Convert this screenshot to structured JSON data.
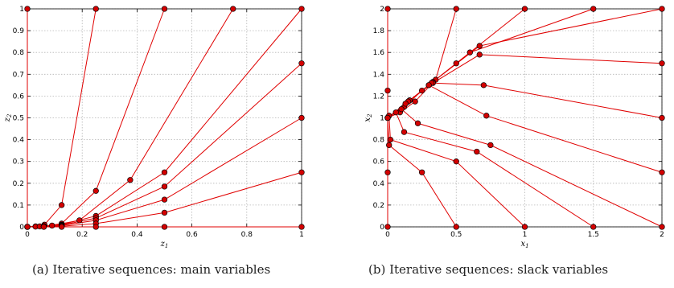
{
  "colors": {
    "line": "#e00000",
    "point_fill": "#d40000",
    "point_stroke": "#000000",
    "grid": "#b4b4b4"
  },
  "chart_data": [
    {
      "type": "line",
      "caption": "(a) Iterative sequences: main variables",
      "xlabel": "z",
      "xlabel_sub": "1",
      "ylabel": "z",
      "ylabel_sub": "2",
      "xlim": [
        0,
        1
      ],
      "ylim": [
        0,
        1
      ],
      "xticks": [
        0,
        0.2,
        0.4,
        0.6,
        0.8,
        1
      ],
      "xtick_labels": [
        "0",
        "0.2",
        "0.4",
        "0.6",
        "0.8",
        "1"
      ],
      "yticks": [
        0,
        0.1,
        0.2,
        0.3,
        0.4,
        0.5,
        0.6,
        0.7,
        0.8,
        0.9,
        1
      ],
      "ytick_labels": [
        "0",
        "0.1",
        "0.2",
        "0.3",
        "0.4",
        "0.5",
        "0.6",
        "0.7",
        "0.8",
        "0.9",
        "1"
      ],
      "grid": true,
      "series": [
        {
          "x": [
            0,
            0
          ],
          "y": [
            1,
            0
          ]
        },
        {
          "x": [
            0.25,
            0.125,
            0.0625,
            0.03,
            0
          ],
          "y": [
            1,
            0.1,
            0.01,
            0.002,
            0
          ]
        },
        {
          "x": [
            0.5,
            0.25,
            0.125,
            0.06,
            0.03,
            0
          ],
          "y": [
            1,
            0.165,
            0.015,
            0.003,
            0.001,
            0
          ]
        },
        {
          "x": [
            0.75,
            0.375,
            0.19,
            0.09,
            0.045,
            0
          ],
          "y": [
            1,
            0.215,
            0.03,
            0.006,
            0.002,
            0
          ]
        },
        {
          "x": [
            1,
            0.5,
            0.25,
            0.125,
            0.06,
            0
          ],
          "y": [
            1,
            0.25,
            0.05,
            0.01,
            0.002,
            0
          ]
        },
        {
          "x": [
            1,
            0.5,
            0.25,
            0.125,
            0.06,
            0
          ],
          "y": [
            0.75,
            0.185,
            0.04,
            0.008,
            0.002,
            0
          ]
        },
        {
          "x": [
            1,
            0.5,
            0.25,
            0.125,
            0.06,
            0
          ],
          "y": [
            0.5,
            0.125,
            0.03,
            0.006,
            0.001,
            0
          ]
        },
        {
          "x": [
            1,
            0.5,
            0.25,
            0.125,
            0.06,
            0
          ],
          "y": [
            0.25,
            0.065,
            0.015,
            0.003,
            0.001,
            0
          ]
        },
        {
          "x": [
            1,
            0.5,
            0.25,
            0.125,
            0.06,
            0
          ],
          "y": [
            0,
            0,
            0,
            0,
            0,
            0
          ]
        }
      ]
    },
    {
      "type": "line",
      "caption": "(b) Iterative sequences: slack variables",
      "xlabel": "x",
      "xlabel_sub": "1",
      "ylabel": "x",
      "ylabel_sub": "2",
      "xlim": [
        0,
        2
      ],
      "ylim": [
        0,
        2
      ],
      "xticks": [
        0,
        0.5,
        1,
        1.5,
        2
      ],
      "xtick_labels": [
        "0",
        "0.5",
        "1",
        "1.5",
        "2"
      ],
      "yticks": [
        0,
        0.2,
        0.4,
        0.6,
        0.8,
        1,
        1.2,
        1.4,
        1.6,
        1.8,
        2
      ],
      "ytick_labels": [
        "0",
        "0.2",
        "0.4",
        "0.6",
        "0.8",
        "1",
        "1.2",
        "1.4",
        "1.6",
        "1.8",
        "2"
      ],
      "grid": true,
      "series": [
        {
          "x": [
            0,
            0,
            0
          ],
          "y": [
            2,
            1.25,
            1
          ]
        },
        {
          "x": [
            0.5,
            0.35,
            0.2,
            0.09,
            0
          ],
          "y": [
            2,
            1.35,
            1.15,
            1.05,
            1
          ]
        },
        {
          "x": [
            1,
            0.5,
            0.25,
            0.12,
            0
          ],
          "y": [
            2,
            1.5,
            1.25,
            1.1,
            1
          ]
        },
        {
          "x": [
            1.5,
            0.6,
            0.3,
            0.15,
            0
          ],
          "y": [
            2,
            1.6,
            1.3,
            1.15,
            1
          ]
        },
        {
          "x": [
            2,
            0.67,
            0.33,
            0.16,
            0
          ],
          "y": [
            2,
            1.66,
            1.33,
            1.16,
            1
          ]
        },
        {
          "x": [
            2,
            0.67,
            0.33,
            0.16,
            0
          ],
          "y": [
            1.5,
            1.58,
            1.32,
            1.16,
            1
          ]
        },
        {
          "x": [
            2,
            0.7,
            0.32,
            0.15,
            0
          ],
          "y": [
            1,
            1.3,
            1.32,
            1.15,
            1
          ]
        },
        {
          "x": [
            2,
            0.72,
            0.3,
            0.13,
            0
          ],
          "y": [
            0.5,
            1.02,
            1.3,
            1.13,
            1
          ]
        },
        {
          "x": [
            2,
            0.75,
            0.22,
            0.1,
            0
          ],
          "y": [
            0,
            0.75,
            0.95,
            1.08,
            1
          ]
        },
        {
          "x": [
            1.5,
            0.65,
            0.12,
            0.06,
            0
          ],
          "y": [
            0,
            0.69,
            0.87,
            1.05,
            1
          ]
        },
        {
          "x": [
            1,
            0.5,
            0.02,
            0.01,
            0
          ],
          "y": [
            0,
            0.6,
            0.8,
            1.02,
            1
          ]
        },
        {
          "x": [
            0.5,
            0.25,
            0.01,
            0.0,
            0
          ],
          "y": [
            0,
            0.5,
            0.75,
            1.0,
            1
          ]
        },
        {
          "x": [
            0,
            0,
            0
          ],
          "y": [
            0,
            0.5,
            1
          ]
        }
      ]
    }
  ]
}
